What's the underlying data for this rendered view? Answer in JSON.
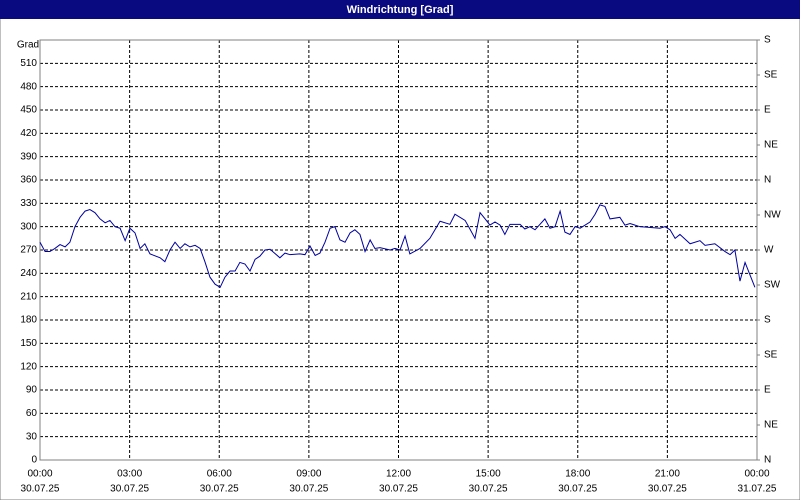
{
  "chart_data": {
    "type": "line",
    "title": "Windrichtung [Grad]",
    "ylabel": "Grad",
    "color": "#0000a0",
    "grid": true,
    "xlim": [
      0,
      24
    ],
    "ylim": [
      0,
      540
    ],
    "y2lim": [
      0,
      540
    ],
    "xticks": [
      {
        "value": 0,
        "label": "00:00",
        "sublabel": "30.07.25"
      },
      {
        "value": 3,
        "label": "03:00",
        "sublabel": "30.07.25"
      },
      {
        "value": 6,
        "label": "06:00",
        "sublabel": "30.07.25"
      },
      {
        "value": 9,
        "label": "09:00",
        "sublabel": "30.07.25"
      },
      {
        "value": 12,
        "label": "12:00",
        "sublabel": "30.07.25"
      },
      {
        "value": 15,
        "label": "15:00",
        "sublabel": "30.07.25"
      },
      {
        "value": 18,
        "label": "18:00",
        "sublabel": "30.07.25"
      },
      {
        "value": 21,
        "label": "21:00",
        "sublabel": "30.07.25"
      },
      {
        "value": 24,
        "label": "00:00",
        "sublabel": "31.07.25"
      }
    ],
    "yticks": [
      0,
      30,
      60,
      90,
      120,
      150,
      180,
      210,
      240,
      270,
      300,
      330,
      360,
      390,
      420,
      450,
      480,
      510
    ],
    "y2ticks": [
      {
        "value": 0,
        "label": "N"
      },
      {
        "value": 45,
        "label": "NE"
      },
      {
        "value": 90,
        "label": "E"
      },
      {
        "value": 135,
        "label": "SE"
      },
      {
        "value": 180,
        "label": "S"
      },
      {
        "value": 225,
        "label": "SW"
      },
      {
        "value": 270,
        "label": "W"
      },
      {
        "value": 315,
        "label": "NW"
      },
      {
        "value": 360,
        "label": "N"
      },
      {
        "value": 405,
        "label": "NE"
      },
      {
        "value": 450,
        "label": "E"
      },
      {
        "value": 495,
        "label": "SE"
      },
      {
        "value": 540,
        "label": "S"
      }
    ],
    "x": [
      0,
      0.17,
      0.33,
      0.5,
      0.67,
      0.84,
      1.0,
      1.17,
      1.34,
      1.51,
      1.67,
      1.84,
      2.01,
      2.18,
      2.34,
      2.51,
      2.68,
      2.85,
      3.01,
      3.18,
      3.35,
      3.51,
      3.68,
      4.02,
      4.18,
      4.35,
      4.52,
      4.69,
      4.85,
      5.02,
      5.19,
      5.36,
      5.52,
      5.69,
      5.86,
      6.03,
      6.19,
      6.36,
      6.53,
      6.69,
      6.86,
      7.03,
      7.2,
      7.36,
      7.53,
      7.7,
      8.03,
      8.2,
      8.37,
      8.7,
      8.87,
      9.04,
      9.21,
      9.37,
      9.54,
      9.71,
      9.87,
      10.04,
      10.21,
      10.38,
      10.54,
      10.71,
      10.88,
      11.05,
      11.21,
      11.38,
      11.72,
      11.88,
      12.05,
      12.22,
      12.38,
      12.72,
      13.05,
      13.39,
      13.72,
      13.89,
      14.23,
      14.39,
      14.56,
      14.73,
      14.9,
      15.06,
      15.23,
      15.4,
      15.56,
      15.73,
      16.07,
      16.23,
      16.4,
      16.57,
      16.9,
      17.07,
      17.24,
      17.41,
      17.57,
      17.74,
      17.91,
      18.08,
      18.41,
      18.58,
      18.74,
      18.91,
      19.08,
      19.41,
      19.58,
      19.75,
      20.08,
      20.75,
      20.92,
      21.09,
      21.26,
      21.42,
      21.76,
      22.09,
      22.26,
      22.59,
      22.93,
      23.1,
      23.26,
      23.43,
      23.6,
      23.93
    ],
    "values": [
      280,
      268,
      268,
      272,
      277,
      274,
      280,
      300,
      312,
      320,
      322,
      318,
      310,
      305,
      308,
      300,
      298,
      282,
      298,
      292,
      272,
      278,
      265,
      260,
      255,
      270,
      280,
      272,
      278,
      274,
      276,
      272,
      255,
      235,
      226,
      222,
      235,
      243,
      243,
      254,
      252,
      243,
      258,
      262,
      270,
      271,
      260,
      266,
      264,
      265,
      264,
      275,
      263,
      266,
      280,
      298,
      300,
      283,
      280,
      292,
      296,
      290,
      268,
      283,
      272,
      273,
      270,
      272,
      270,
      288,
      265,
      272,
      285,
      307,
      303,
      316,
      308,
      297,
      285,
      318,
      310,
      302,
      306,
      302,
      290,
      303,
      303,
      297,
      300,
      296,
      310,
      298,
      300,
      320,
      293,
      290,
      300,
      298,
      306,
      316,
      328,
      326,
      310,
      312,
      302,
      304,
      300,
      298,
      300,
      296,
      285,
      290,
      278,
      282,
      276,
      278,
      268,
      264,
      270,
      230,
      254,
      222
    ]
  }
}
